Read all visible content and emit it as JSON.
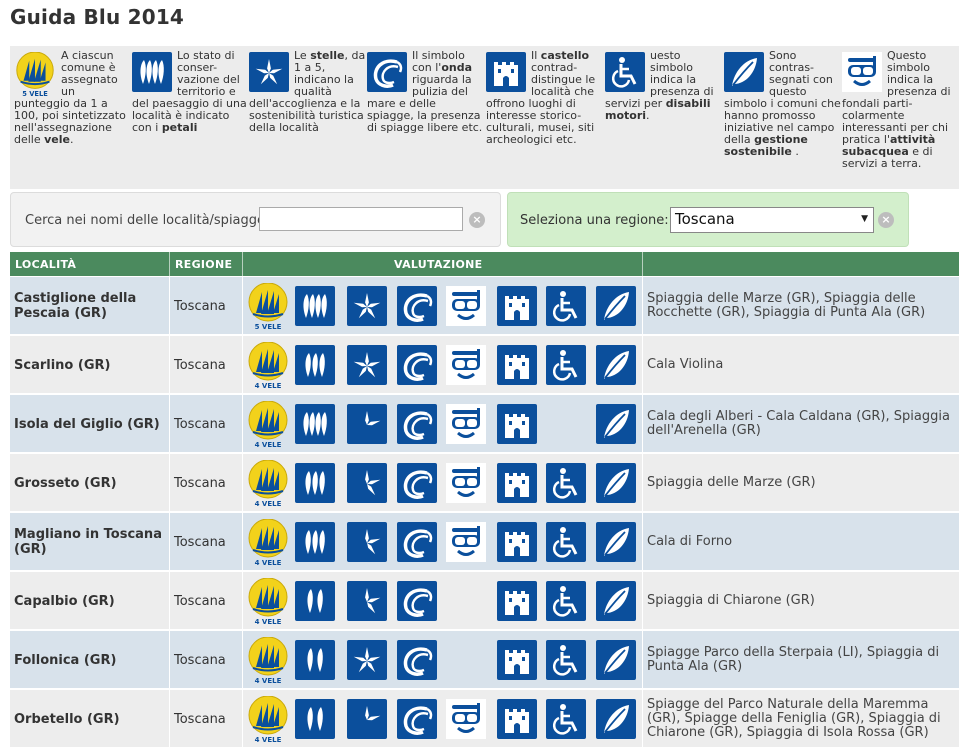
{
  "page": {
    "title": "Guida Blu 2014"
  },
  "legend": [
    {
      "icon": "sails-icon",
      "badge": "5 VELE",
      "html": "A ciascun comune è assegnato un punteggio da 1 a 100, poi sintetizzato nell'assegnazione delle <b>vele</b>."
    },
    {
      "icon": "petals-icon",
      "html": "Lo stato di conser-vazione del territorio e del paesaggio di una località è indicato con i <b>petali</b>"
    },
    {
      "icon": "star-icon",
      "html": "Le <b>stelle</b>, da 1 a 5, indicano la qualità dell'accoglienza e la sostenibilità turistica della località"
    },
    {
      "icon": "wave-icon",
      "html": "Il simbolo con l'<b>onda</b> riguarda la pulizia del mare e delle spiagge, la presenza di spiagge libere etc."
    },
    {
      "icon": "castle-icon",
      "html": "Il <b>castello</b> contrad-distingue le località che offrono luoghi di interesse storico-culturali, musei, siti archeologici etc."
    },
    {
      "icon": "wheelchair-icon",
      "html": "uesto simbolo indica la presenza di servizi per <b>disabili motori</b>."
    },
    {
      "icon": "leaf-icon",
      "html": "Sono contras-segnati con questo simbolo i comuni che hanno promosso iniziative nel campo della <b>gestione sostenibile</b> ."
    },
    {
      "icon": "diving-mask-icon",
      "html": "Questo simbolo indica la presenza di fondali parti-colarmente interessanti per chi pratica l'<b>attività subacquea</b> e di servizi a terra."
    }
  ],
  "filters": {
    "search_label": "Cerca nei nomi delle località/spiagge",
    "search_value": "",
    "search_clear": "×",
    "region_label": "Seleziona una regione:",
    "region_value": "Toscana",
    "region_clear": "×"
  },
  "table": {
    "headers": {
      "location": "LOCALITÀ",
      "region": "REGIONE",
      "rating": "VALUTAZIONE",
      "beaches": ""
    },
    "rows": [
      {
        "location": "Castiglione della Pescaia (GR)",
        "region": "Toscana",
        "sails": "5 VELE",
        "petals": 4,
        "stars": 4,
        "wave": true,
        "mask": true,
        "castle": true,
        "wheelchair": true,
        "leaf": true,
        "beaches": "Spiaggia delle Marze (GR), Spiaggia delle Rocchette (GR), Spiaggia di Punta Ala (GR)"
      },
      {
        "location": "Scarlino (GR)",
        "region": "Toscana",
        "sails": "4 VELE",
        "petals": 3,
        "stars": 4,
        "wave": true,
        "mask": true,
        "castle": true,
        "wheelchair": true,
        "leaf": true,
        "beaches": "Cala Violina"
      },
      {
        "location": "Isola del Giglio (GR)",
        "region": "Toscana",
        "sails": "4 VELE",
        "petals": 4,
        "stars": 2,
        "wave": true,
        "mask": true,
        "castle": true,
        "wheelchair": false,
        "leaf": true,
        "beaches": "Cala degli Alberi - Cala Caldana (GR), Spiaggia dell'Arenella (GR)"
      },
      {
        "location": "Grosseto (GR)",
        "region": "Toscana",
        "sails": "4 VELE",
        "petals": 3,
        "stars": 3,
        "wave": true,
        "mask": true,
        "castle": true,
        "wheelchair": true,
        "leaf": true,
        "beaches": "Spiaggia delle Marze (GR)"
      },
      {
        "location": "Magliano in Toscana (GR)",
        "region": "Toscana",
        "sails": "4 VELE",
        "petals": 3,
        "stars": 3,
        "wave": true,
        "mask": true,
        "castle": true,
        "wheelchair": true,
        "leaf": true,
        "beaches": "Cala di Forno"
      },
      {
        "location": "Capalbio (GR)",
        "region": "Toscana",
        "sails": "4 VELE",
        "petals": 2,
        "stars": 3,
        "wave": true,
        "mask": false,
        "castle": true,
        "wheelchair": true,
        "leaf": true,
        "beaches": "Spiaggia di Chiarone (GR)"
      },
      {
        "location": "Follonica (GR)",
        "region": "Toscana",
        "sails": "4 VELE",
        "petals": 2,
        "stars": 4,
        "wave": true,
        "mask": false,
        "castle": true,
        "wheelchair": true,
        "leaf": true,
        "beaches": "Spiagge Parco della Sterpaia (LI), Spiaggia di Punta Ala (GR)"
      },
      {
        "location": "Orbetello (GR)",
        "region": "Toscana",
        "sails": "4 VELE",
        "petals": 2,
        "stars": 2,
        "wave": true,
        "mask": true,
        "castle": true,
        "wheelchair": true,
        "leaf": true,
        "beaches": "Spiagge del Parco Naturale della Maremma (GR), Spiagge della Feniglia (GR), Spiaggia di Chiarone (GR), Spiaggia di Isola Rossa (GR)"
      }
    ]
  },
  "colors": {
    "header_green": "#4b8a5e",
    "icon_blue": "#0b4f9c",
    "sail_yellow": "#f2d21b",
    "row_blue": "#d8e2eb",
    "row_gray": "#ededed",
    "region_box": "#d3efcc"
  }
}
